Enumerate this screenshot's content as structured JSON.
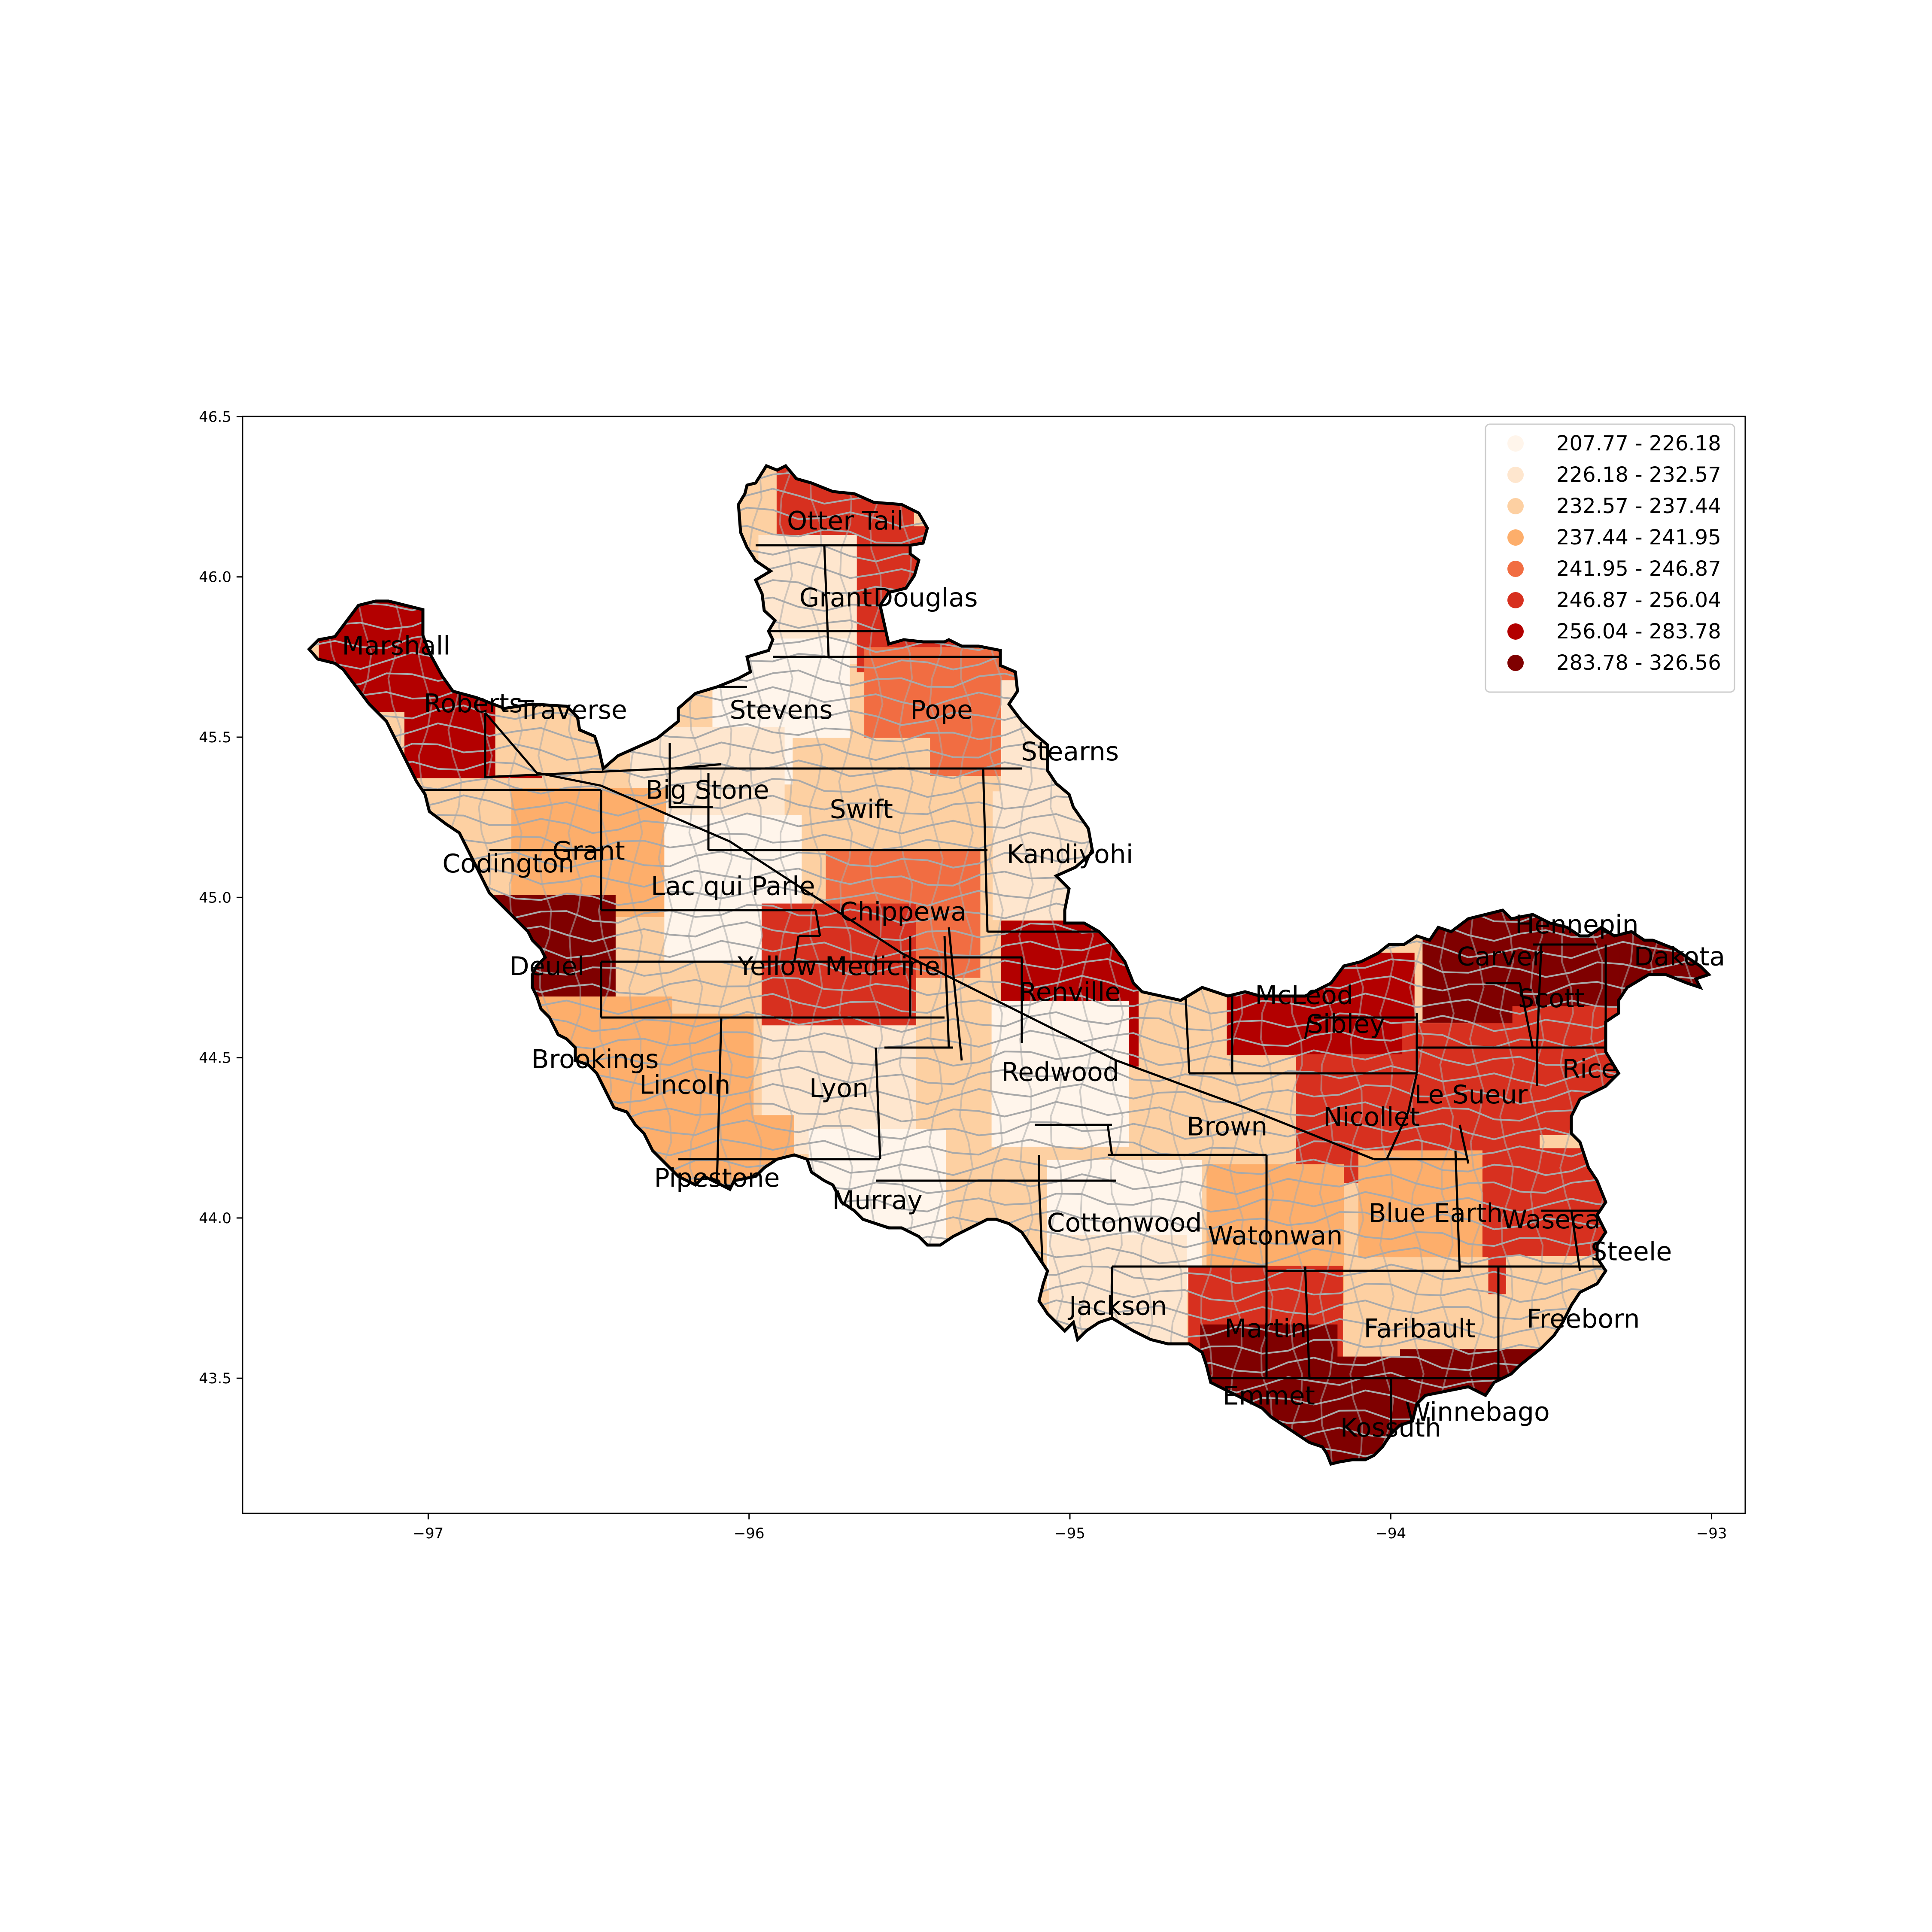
{
  "map": {
    "xaxis": {
      "ticks": [
        -97,
        -96,
        -95,
        -94,
        -93
      ],
      "labels": [
        "−97",
        "−96",
        "−95",
        "−94",
        "−93"
      ],
      "range": [
        -97.6,
        -92.88
      ]
    },
    "yaxis": {
      "ticks": [
        43.5,
        44.0,
        44.5,
        45.0,
        45.5,
        46.0,
        46.5
      ],
      "labels": [
        "43.5",
        "44.0",
        "44.5",
        "45.0",
        "45.5",
        "46.0",
        "46.5"
      ],
      "range": [
        43.07,
        46.52
      ]
    },
    "legend": {
      "placement": "top-right",
      "classes": [
        {
          "label": "207.77 - 226.18",
          "color": "#fff5eb"
        },
        {
          "label": "226.18 - 232.57",
          "color": "#fee6ce"
        },
        {
          "label": "232.57 - 237.44",
          "color": "#fdd0a2"
        },
        {
          "label": "237.44 - 241.95",
          "color": "#fdae6b"
        },
        {
          "label": "241.95 - 246.87",
          "color": "#f16d42"
        },
        {
          "label": "246.87 - 256.04",
          "color": "#d7301f"
        },
        {
          "label": "256.04 - 283.78",
          "color": "#b30000"
        },
        {
          "label": "283.78 - 326.56",
          "color": "#7f0000"
        }
      ]
    },
    "regions": [
      {
        "name": "Otter Tail",
        "lon": -95.7,
        "lat": 46.17,
        "cls": 5
      },
      {
        "name": "Grant",
        "lon": -95.73,
        "lat": 45.93,
        "cls": 1
      },
      {
        "name": "Douglas",
        "lon": -95.45,
        "lat": 45.93,
        "cls": 5
      },
      {
        "name": "Marshall",
        "lon": -97.1,
        "lat": 45.78,
        "cls": 6
      },
      {
        "name": "Roberts",
        "lon": -96.86,
        "lat": 45.6,
        "cls": 6
      },
      {
        "name": "Traverse",
        "lon": -96.55,
        "lat": 45.58,
        "cls": 2
      },
      {
        "name": "Stevens",
        "lon": -95.9,
        "lat": 45.58,
        "cls": 0
      },
      {
        "name": "Pope",
        "lon": -95.4,
        "lat": 45.58,
        "cls": 4
      },
      {
        "name": "Stearns",
        "lon": -95.0,
        "lat": 45.45,
        "cls": 1
      },
      {
        "name": "Big Stone",
        "lon": -96.13,
        "lat": 45.33,
        "cls": 1
      },
      {
        "name": "Swift",
        "lon": -95.65,
        "lat": 45.27,
        "cls": 2
      },
      {
        "name": "Kandiyohi",
        "lon": -95.0,
        "lat": 45.13,
        "cls": 1
      },
      {
        "name": "Codington",
        "lon": -96.75,
        "lat": 45.1,
        "cls": 2
      },
      {
        "name": "Grant",
        "lon": -96.5,
        "lat": 45.14,
        "cls": 3
      },
      {
        "name": "Lac qui Parle",
        "lon": -96.05,
        "lat": 45.03,
        "cls": 0
      },
      {
        "name": "Chippewa",
        "lon": -95.52,
        "lat": 44.95,
        "cls": 4
      },
      {
        "name": "Deuel",
        "lon": -96.63,
        "lat": 44.78,
        "cls": 7
      },
      {
        "name": "Yellow Medicine",
        "lon": -95.72,
        "lat": 44.78,
        "cls": 5
      },
      {
        "name": "Renville",
        "lon": -95.0,
        "lat": 44.7,
        "cls": 6
      },
      {
        "name": "McLeod",
        "lon": -94.27,
        "lat": 44.69,
        "cls": 6
      },
      {
        "name": "Sibley",
        "lon": -94.14,
        "lat": 44.6,
        "cls": 6
      },
      {
        "name": "Carver",
        "lon": -93.66,
        "lat": 44.81,
        "cls": 7
      },
      {
        "name": "Hennepin",
        "lon": -93.42,
        "lat": 44.91,
        "cls": 7
      },
      {
        "name": "Dakota",
        "lon": -93.1,
        "lat": 44.81,
        "cls": 7
      },
      {
        "name": "Scott",
        "lon": -93.5,
        "lat": 44.68,
        "cls": 7
      },
      {
        "name": "Brookings",
        "lon": -96.48,
        "lat": 44.49,
        "cls": 3
      },
      {
        "name": "Lincoln",
        "lon": -96.2,
        "lat": 44.41,
        "cls": 3
      },
      {
        "name": "Lyon",
        "lon": -95.72,
        "lat": 44.4,
        "cls": 1
      },
      {
        "name": "Redwood",
        "lon": -95.03,
        "lat": 44.45,
        "cls": 0
      },
      {
        "name": "Rice",
        "lon": -93.38,
        "lat": 44.46,
        "cls": 5
      },
      {
        "name": "Le Sueur",
        "lon": -93.75,
        "lat": 44.38,
        "cls": 5
      },
      {
        "name": "Nicollet",
        "lon": -94.06,
        "lat": 44.31,
        "cls": 5
      },
      {
        "name": "Brown",
        "lon": -94.51,
        "lat": 44.28,
        "cls": 2
      },
      {
        "name": "Pipestone",
        "lon": -96.1,
        "lat": 44.12,
        "cls": 3
      },
      {
        "name": "Murray",
        "lon": -95.6,
        "lat": 44.05,
        "cls": 0
      },
      {
        "name": "Cottonwood",
        "lon": -94.83,
        "lat": 43.98,
        "cls": 0
      },
      {
        "name": "Watonwan",
        "lon": -94.36,
        "lat": 43.94,
        "cls": 3
      },
      {
        "name": "Blue Earth",
        "lon": -93.86,
        "lat": 44.01,
        "cls": 3
      },
      {
        "name": "Waseca",
        "lon": -93.5,
        "lat": 43.99,
        "cls": 5
      },
      {
        "name": "Steele",
        "lon": -93.25,
        "lat": 43.89,
        "cls": 5
      },
      {
        "name": "Jackson",
        "lon": -94.85,
        "lat": 43.72,
        "cls": 1
      },
      {
        "name": "Martin",
        "lon": -94.39,
        "lat": 43.65,
        "cls": 5
      },
      {
        "name": "Faribault",
        "lon": -93.91,
        "lat": 43.65,
        "cls": 2
      },
      {
        "name": "Freeborn",
        "lon": -93.4,
        "lat": 43.68,
        "cls": 2
      },
      {
        "name": "Emmet",
        "lon": -94.38,
        "lat": 43.44,
        "cls": 7
      },
      {
        "name": "Winnebago",
        "lon": -93.73,
        "lat": 43.39,
        "cls": 7
      },
      {
        "name": "Kossuth",
        "lon": -94.0,
        "lat": 43.34,
        "cls": 7
      }
    ]
  }
}
